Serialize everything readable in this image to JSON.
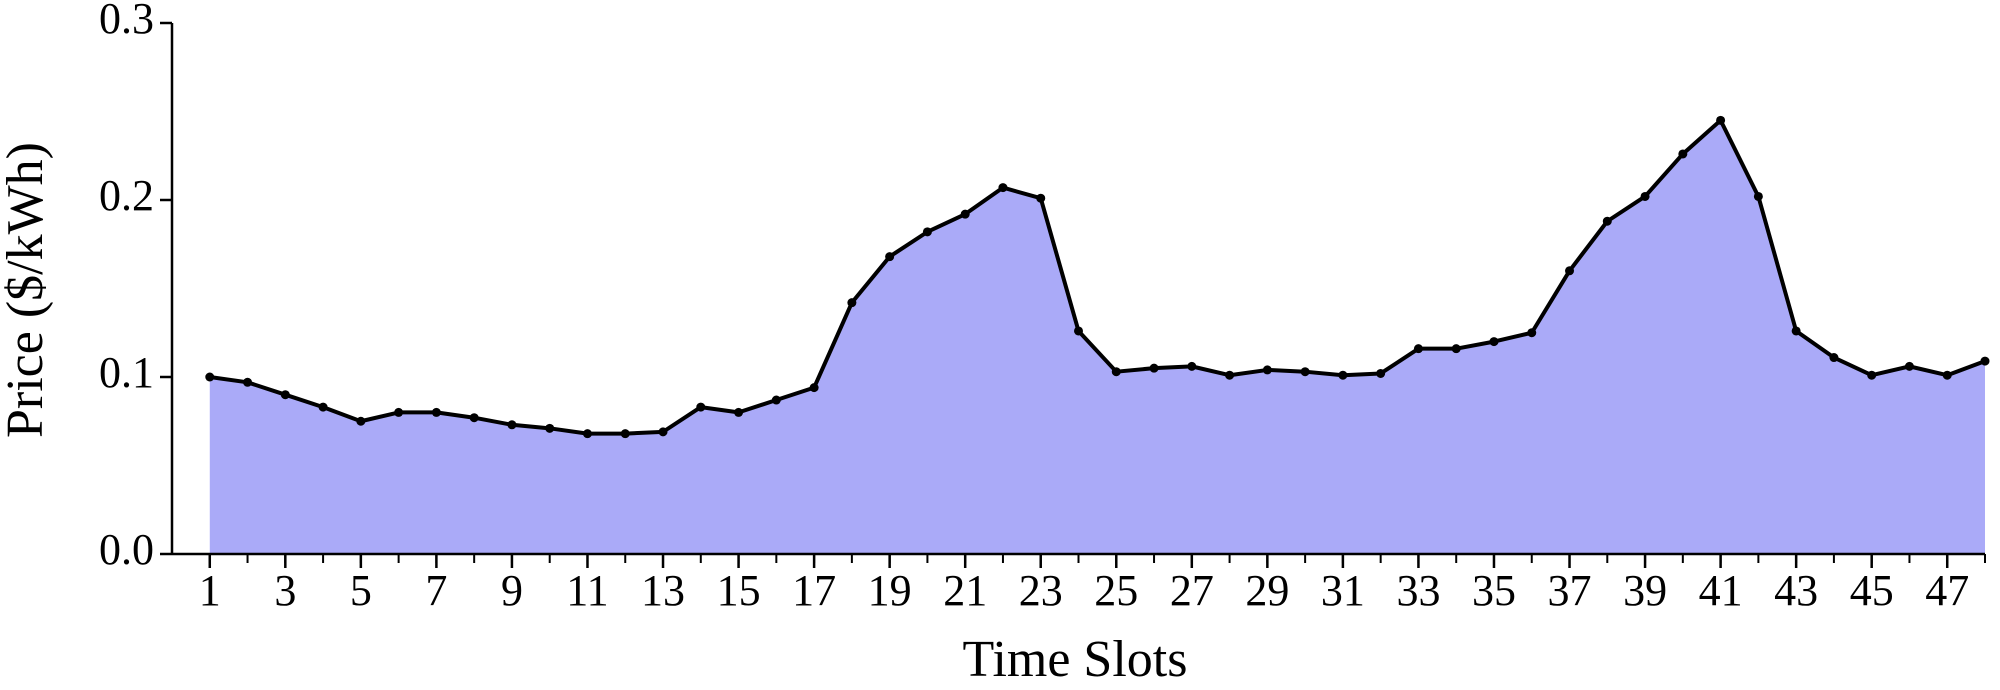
{
  "chart_data": {
    "type": "area",
    "xlabel": "Time Slots",
    "ylabel": "Price ($/kWh)",
    "x": [
      1,
      2,
      3,
      4,
      5,
      6,
      7,
      8,
      9,
      10,
      11,
      12,
      13,
      14,
      15,
      16,
      17,
      18,
      19,
      20,
      21,
      22,
      23,
      24,
      25,
      26,
      27,
      28,
      29,
      30,
      31,
      32,
      33,
      34,
      35,
      36,
      37,
      38,
      39,
      40,
      41,
      42,
      43,
      44,
      45,
      46,
      47,
      48
    ],
    "values": [
      0.1,
      0.097,
      0.09,
      0.083,
      0.075,
      0.08,
      0.08,
      0.077,
      0.073,
      0.071,
      0.068,
      0.068,
      0.069,
      0.083,
      0.08,
      0.087,
      0.094,
      0.142,
      0.168,
      0.182,
      0.192,
      0.207,
      0.201,
      0.126,
      0.103,
      0.105,
      0.106,
      0.101,
      0.104,
      0.103,
      0.101,
      0.102,
      0.116,
      0.116,
      0.12,
      0.125,
      0.16,
      0.188,
      0.202,
      0.226,
      0.245,
      0.202,
      0.126,
      0.111,
      0.101,
      0.106,
      0.101,
      0.109
    ],
    "color": "#aaaaf8",
    "line_color": "#000000",
    "xlim": [
      0,
      48
    ],
    "xticks": [
      1,
      3,
      5,
      7,
      9,
      11,
      13,
      15,
      17,
      19,
      21,
      23,
      25,
      27,
      29,
      31,
      33,
      35,
      37,
      39,
      41,
      43,
      45,
      47
    ],
    "ylim": [
      0,
      0.3
    ],
    "yticks": [
      {
        "value": 0,
        "label": "0.0"
      },
      0.1,
      0.2,
      0.3
    ]
  }
}
